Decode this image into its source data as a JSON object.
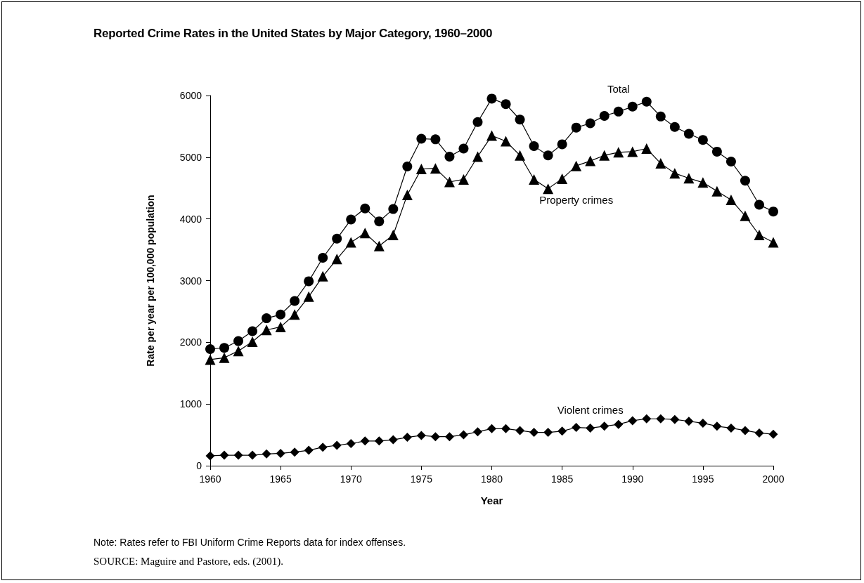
{
  "chart_data": {
    "type": "line",
    "title": "Reported Crime Rates in the United States by Major Category, 1960–2000",
    "xlabel": "Year",
    "ylabel": "Rate per year per 100,000 population",
    "x": [
      1960,
      1961,
      1962,
      1963,
      1964,
      1965,
      1966,
      1967,
      1968,
      1969,
      1970,
      1971,
      1972,
      1973,
      1974,
      1975,
      1976,
      1977,
      1978,
      1979,
      1980,
      1981,
      1982,
      1983,
      1984,
      1985,
      1986,
      1987,
      1988,
      1989,
      1990,
      1991,
      1992,
      1993,
      1994,
      1995,
      1996,
      1997,
      1998,
      1999,
      2000
    ],
    "xlim": [
      1960,
      2000
    ],
    "xticks": [
      1960,
      1965,
      1970,
      1975,
      1980,
      1985,
      1990,
      1995,
      2000
    ],
    "ylim": [
      0,
      6000
    ],
    "yticks": [
      0,
      1000,
      2000,
      3000,
      4000,
      5000,
      6000
    ],
    "grid": false,
    "legend": false,
    "line_style": "solid",
    "series": [
      {
        "name": "Total",
        "color": "#000000",
        "marker": "circle",
        "values": [
          1890,
          1910,
          2020,
          2180,
          2390,
          2450,
          2670,
          2990,
          3370,
          3680,
          3990,
          4170,
          3960,
          4160,
          4850,
          5300,
          5290,
          5010,
          5140,
          5570,
          5950,
          5860,
          5610,
          5180,
          5030,
          5210,
          5480,
          5550,
          5670,
          5740,
          5820,
          5900,
          5660,
          5490,
          5380,
          5280,
          5090,
          4930,
          4620,
          4230,
          4120
        ]
      },
      {
        "name": "Property crimes",
        "color": "#000000",
        "marker": "triangle",
        "values": [
          1720,
          1750,
          1860,
          2010,
          2200,
          2250,
          2450,
          2740,
          3070,
          3350,
          3620,
          3770,
          3560,
          3740,
          4390,
          4810,
          4820,
          4600,
          4640,
          5010,
          5350,
          5260,
          5030,
          4640,
          4490,
          4650,
          4860,
          4940,
          5030,
          5080,
          5090,
          5140,
          4900,
          4740,
          4660,
          4590,
          4450,
          4310,
          4050,
          3740,
          3620
        ]
      },
      {
        "name": "Violent crimes",
        "color": "#000000",
        "marker": "diamond",
        "values": [
          160,
          170,
          170,
          170,
          190,
          200,
          220,
          250,
          300,
          330,
          360,
          400,
          400,
          420,
          460,
          490,
          470,
          470,
          500,
          550,
          600,
          600,
          570,
          540,
          540,
          560,
          620,
          610,
          640,
          670,
          730,
          760,
          760,
          750,
          720,
          690,
          640,
          610,
          570,
          530,
          510
        ]
      }
    ],
    "annotations": [
      "Note: Rates refer to FBI Uniform Crime Reports data for index offenses.",
      "SOURCE: Maguire and Pastore, eds. (2001)."
    ]
  }
}
